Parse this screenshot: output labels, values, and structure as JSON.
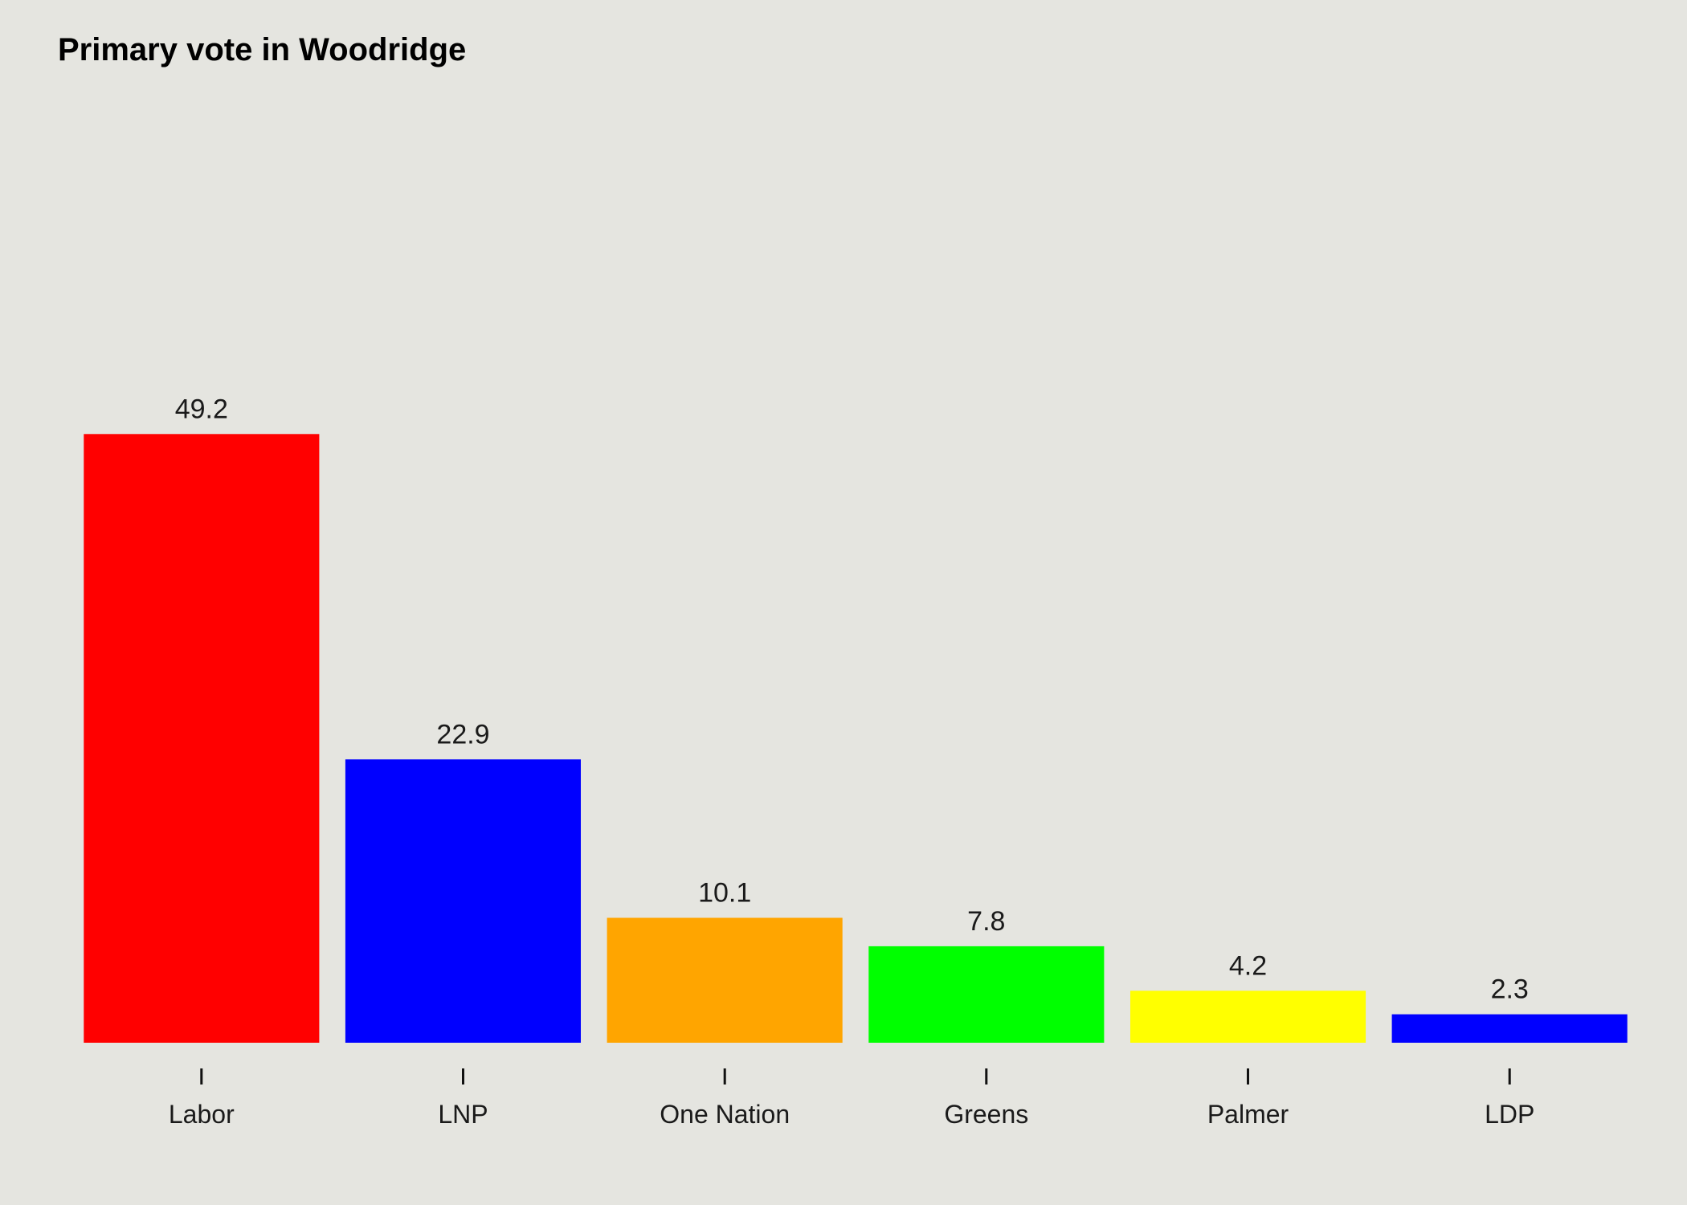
{
  "chart_data": {
    "type": "bar",
    "title": "Primary vote in Woodridge",
    "xlabel": "",
    "ylabel": "",
    "categories": [
      "Labor",
      "LNP",
      "One Nation",
      "Greens",
      "Palmer",
      "LDP"
    ],
    "values": [
      49.2,
      22.9,
      10.1,
      7.8,
      4.2,
      2.3
    ],
    "value_labels": [
      "49.2",
      "22.9",
      "10.1",
      "7.8",
      "4.2",
      "2.3"
    ],
    "colors": [
      "#ff0000",
      "#0000ff",
      "#ffa500",
      "#00ff00",
      "#ffff00",
      "#0000ff"
    ],
    "ylim": [
      0,
      75
    ],
    "grid": false,
    "legend": "none",
    "background": "#e5e5e0"
  }
}
